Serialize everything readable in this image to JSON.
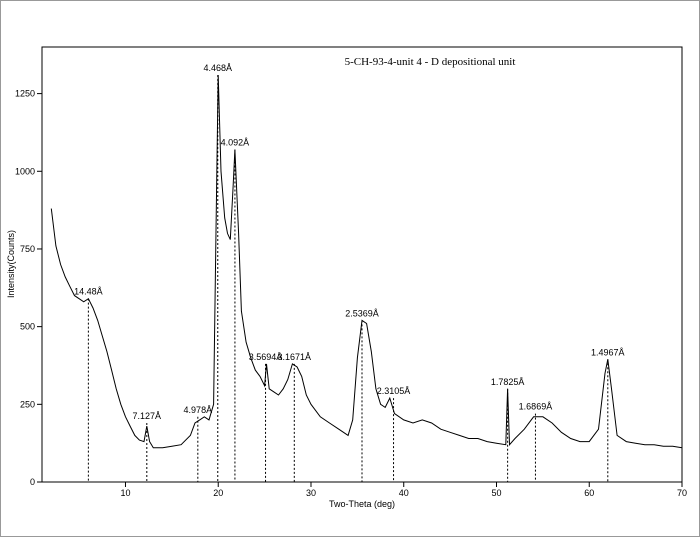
{
  "chart_data": {
    "type": "line",
    "title": "5-CH-93-4-unit 4 - D depositional unit",
    "xlabel": "Two-Theta (deg)",
    "ylabel": "Intensity(Counts)",
    "xlim": [
      1,
      70
    ],
    "xticks": [
      10,
      20,
      30,
      40,
      50,
      60,
      70
    ],
    "ylim": [
      0,
      1400
    ],
    "yticks": [
      0,
      250,
      500,
      750,
      1000,
      1250
    ],
    "color": "#000000",
    "x": [
      2,
      2.5,
      3,
      3.5,
      4,
      4.5,
      5,
      5.5,
      6,
      6.5,
      7,
      7.5,
      8,
      8.5,
      9,
      9.5,
      10,
      10.5,
      11,
      11.5,
      12,
      12.3,
      12.6,
      13,
      14,
      15,
      16,
      17,
      17.5,
      18,
      18.5,
      19,
      19.5,
      19.8,
      20,
      20.3,
      20.7,
      21,
      21.3,
      21.6,
      21.8,
      22.2,
      22.5,
      23,
      23.5,
      24,
      24.5,
      25,
      25.2,
      25.5,
      26,
      26.5,
      27,
      27.5,
      28,
      28.5,
      29,
      29.5,
      30,
      31,
      32,
      33,
      34,
      34.5,
      35,
      35.5,
      36,
      36.5,
      37,
      37.5,
      38,
      38.5,
      39,
      40,
      41,
      42,
      43,
      44,
      45,
      46,
      47,
      48,
      49,
      50,
      51,
      51.2,
      51.4,
      52,
      53,
      54,
      55,
      56,
      57,
      58,
      59,
      60,
      61,
      61.7,
      62,
      62.4,
      63,
      64,
      65,
      66,
      67,
      68,
      69,
      70
    ],
    "values": [
      880,
      760,
      700,
      660,
      630,
      600,
      590,
      580,
      590,
      560,
      520,
      470,
      420,
      360,
      300,
      250,
      210,
      180,
      150,
      135,
      130,
      180,
      130,
      110,
      110,
      115,
      120,
      150,
      190,
      200,
      210,
      200,
      250,
      900,
      1310,
      1000,
      850,
      800,
      780,
      950,
      1070,
      800,
      550,
      450,
      400,
      360,
      340,
      310,
      380,
      300,
      290,
      280,
      300,
      330,
      380,
      370,
      340,
      280,
      250,
      210,
      190,
      170,
      150,
      200,
      400,
      520,
      510,
      420,
      300,
      250,
      240,
      270,
      220,
      200,
      190,
      200,
      190,
      170,
      160,
      150,
      140,
      140,
      130,
      125,
      120,
      300,
      120,
      140,
      170,
      210,
      210,
      190,
      160,
      140,
      130,
      130,
      170,
      350,
      395,
      300,
      150,
      130,
      125,
      120,
      120,
      115,
      115,
      110
    ],
    "annotations": [
      {
        "text": "14.48Å",
        "x": 6,
        "y": 590
      },
      {
        "text": "7.127Å",
        "x": 12.3,
        "y": 190
      },
      {
        "text": "4.978Å",
        "x": 17.8,
        "y": 210
      },
      {
        "text": "4.468Å",
        "x": 19.95,
        "y": 1310
      },
      {
        "text": "4.092Å",
        "x": 21.8,
        "y": 1070
      },
      {
        "text": "3.5694Å",
        "x": 25.1,
        "y": 380
      },
      {
        "text": "3.1671Å",
        "x": 28.2,
        "y": 380
      },
      {
        "text": "2.5369Å",
        "x": 35.5,
        "y": 520
      },
      {
        "text": "2.3105Å",
        "x": 38.9,
        "y": 270
      },
      {
        "text": "1.7825Å",
        "x": 51.2,
        "y": 300
      },
      {
        "text": "1.6869Å",
        "x": 54.2,
        "y": 220
      },
      {
        "text": "1.4967Å",
        "x": 62,
        "y": 395
      }
    ]
  }
}
